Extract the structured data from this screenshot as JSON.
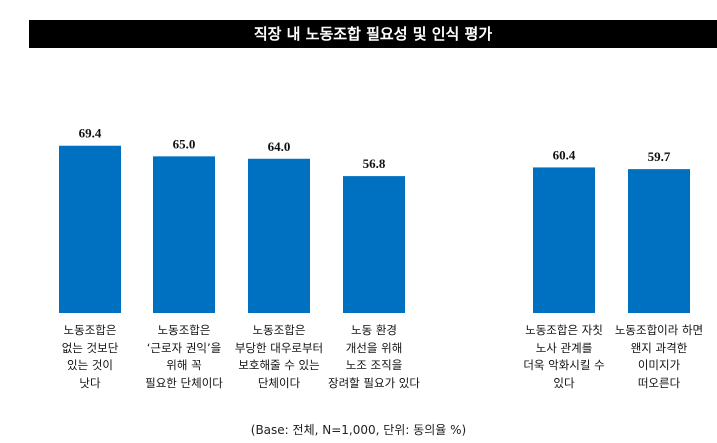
{
  "chart_data": {
    "type": "bar",
    "title": "직장 내 노동조합 필요성 및 인식 평가",
    "categories": [
      "노동조합은\n없는 것보단\n있는 것이\n낫다",
      "노동조합은\n‘근로자 권익’을\n위해 꼭\n필요한 단체이다",
      "노동조합은\n부당한 대우로부터\n보호해줄 수 있는\n단체이다",
      "노동 환경\n개선을 위해\n노조 조직을\n장려할 필요가 있다",
      "노동조합은 자칫\n노사 관계를\n더욱 악화시킬 수\n있다",
      "노동조합이라 하면\n왠지 과격한\n이미지가\n떠오른다"
    ],
    "values": [
      69.4,
      65.0,
      64.0,
      56.8,
      60.4,
      59.7
    ],
    "data_labels": [
      "69.4",
      "65.0",
      "64.0",
      "56.8",
      "60.4",
      "59.7"
    ],
    "ylim": [
      0,
      100
    ],
    "grid": false,
    "bar_color": "#0070c0",
    "note": "(Base: 전체, N=1,000, 단위: 동의율 %)"
  }
}
